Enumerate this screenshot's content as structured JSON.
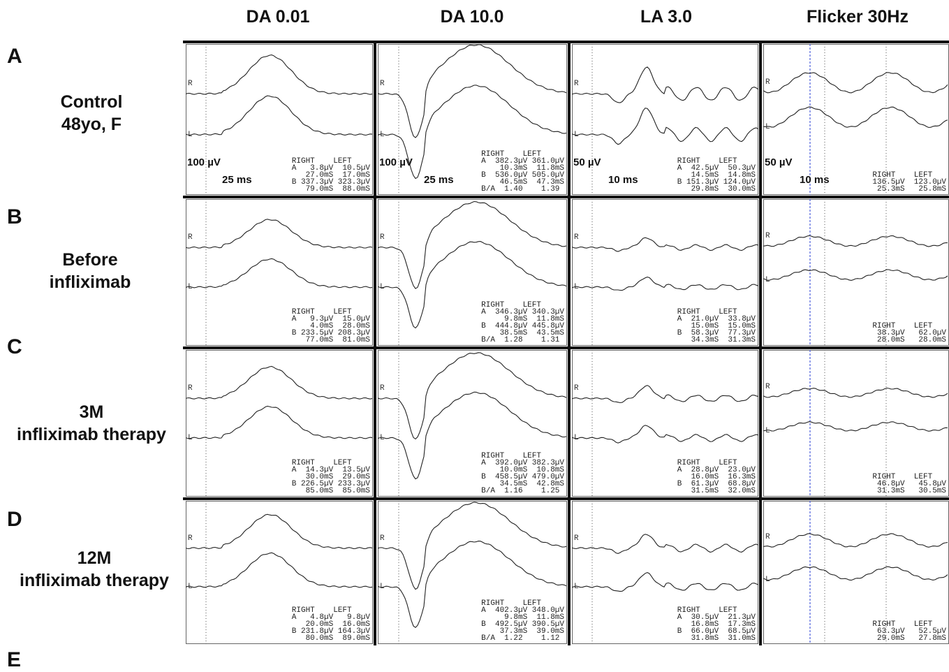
{
  "columns": [
    "DA 0.01",
    "DA 10.0",
    "LA 3.0",
    "Flicker 30Hz"
  ],
  "rows": [
    {
      "letter": "A",
      "label_lines": [
        "Control",
        "48yo, F"
      ]
    },
    {
      "letter": "B",
      "label_lines": [
        "Before",
        "infliximab"
      ]
    },
    {
      "letter": "C",
      "label_lines": [
        "3M",
        "infliximab therapy"
      ]
    },
    {
      "letter": "D",
      "label_lines": [
        "12M",
        "infliximab therapy"
      ]
    }
  ],
  "footer_letter": "E",
  "scales": {
    "da001": {
      "amp": "100 µV",
      "time": "25 ms"
    },
    "da10": {
      "amp": "100 µV",
      "time": "25 ms"
    },
    "la3": {
      "amp": "50 µV",
      "time": "10 ms"
    },
    "flicker": {
      "amp": "50 µV",
      "time": "10 ms"
    }
  },
  "trace_labels": {
    "right": "R",
    "left": "L"
  },
  "readouts": {
    "A": {
      "da001": [
        "RIGHT    LEFT",
        "A   3.8µV  10.5µV",
        "   27.0mS  17.0mS",
        "B 337.3µV 323.3µV",
        "   79.0mS  88.0mS"
      ],
      "da10": [
        "RIGHT    LEFT",
        "A  382.3µV 361.0µV",
        "    10.3mS  11.8mS",
        "B  536.0µV 505.0µV",
        "    46.5mS  47.3mS",
        "B/A  1.40    1.39"
      ],
      "la3": [
        "RIGHT    LEFT",
        "A  42.5µV  50.3µV",
        "   14.5mS  14.8mS",
        "B 151.3µV 124.0µV",
        "   29.8mS  30.0mS"
      ],
      "flicker": [
        "RIGHT    LEFT",
        "136.5µV  123.0µV",
        " 25.3mS   25.8mS"
      ]
    },
    "B": {
      "da001": [
        "RIGHT    LEFT",
        "A   9.3µV  15.0µV",
        "    4.0mS  28.0mS",
        "B 233.5µV 208.3µV",
        "   77.0mS  81.0mS"
      ],
      "da10": [
        "RIGHT    LEFT",
        "A  346.3µV 340.3µV",
        "     9.8mS  11.8mS",
        "B  444.8µV 445.8µV",
        "    38.5mS  43.5mS",
        "B/A  1.28    1.31"
      ],
      "la3": [
        "RIGHT    LEFT",
        "A  21.0µV  33.8µV",
        "   15.0mS  15.0mS",
        "B  58.3µV  77.3µV",
        "   34.3mS  31.3mS"
      ],
      "flicker": [
        "RIGHT    LEFT",
        " 38.3µV   62.0µV",
        " 28.0mS   28.0mS"
      ]
    },
    "C": {
      "da001": [
        "RIGHT    LEFT",
        "A  14.3µV  13.5µV",
        "   30.0mS  29.0mS",
        "B 226.5µV 233.3µV",
        "   85.0mS  85.0mS"
      ],
      "da10": [
        "RIGHT    LEFT",
        "A  392.0µV 382.3µV",
        "    10.0mS  10.8mS",
        "B  458.5µV 479.0µV",
        "    34.5mS  42.8mS",
        "B/A  1.16    1.25"
      ],
      "la3": [
        "RIGHT    LEFT",
        "A  28.8µV  23.0µV",
        "   16.0mS  16.3mS",
        "B  61.3µV  68.8µV",
        "   31.5mS  32.0mS"
      ],
      "flicker": [
        "RIGHT    LEFT",
        " 46.8µV   45.8µV",
        " 31.3mS   30.5mS"
      ]
    },
    "D": {
      "da001": [
        "RIGHT    LEFT",
        "A   4.8µV   9.8µV",
        "   20.0mS  16.0mS",
        "B 231.8µV 164.3µV",
        "   80.0mS  89.0mS"
      ],
      "da10": [
        "RIGHT    LEFT",
        "A  402.3µV 348.0µV",
        "     9.8mS  11.8mS",
        "B  492.5µV 390.5µV",
        "    37.3mS  39.0mS",
        "B/A  1.22    1.12"
      ],
      "la3": [
        "RIGHT    LEFT",
        "A  30.5µV  21.3µV",
        "   16.8mS  17.3mS",
        "B  66.0µV  68.5µV",
        "   31.8mS  31.0mS"
      ],
      "flicker": [
        "RIGHT    LEFT",
        " 63.3µV   52.5µV",
        " 29.0mS   27.8mS"
      ]
    }
  },
  "colors": {
    "trace": "#222222",
    "grid_line": "#111111",
    "flicker_marker": "#2a3fd6"
  }
}
